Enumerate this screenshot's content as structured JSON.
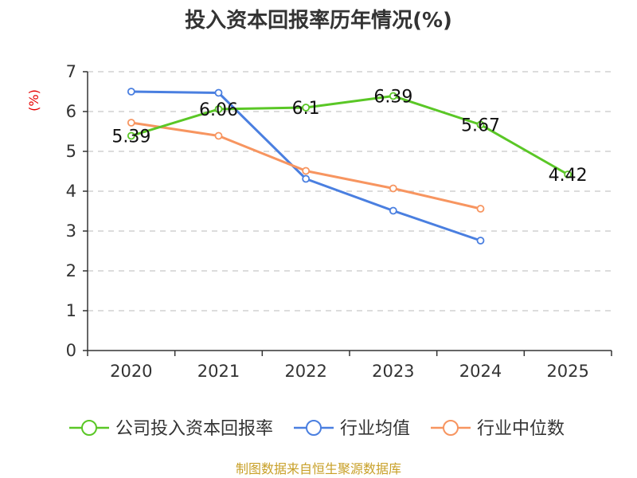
{
  "chart_data": {
    "type": "line",
    "title": "投入资本回报率历年情况(%)",
    "ylabel": "(%)",
    "xlabel": "",
    "categories": [
      "2020",
      "2021",
      "2022",
      "2023",
      "2024",
      "2025"
    ],
    "ylim": [
      0,
      7
    ],
    "yticks": [
      "0",
      "1",
      "2",
      "3",
      "4",
      "5",
      "6",
      "7"
    ],
    "grid": true,
    "legend_position": "bottom",
    "series": [
      {
        "name": "公司投入资本回报率",
        "color": "#5ac726",
        "values": [
          5.39,
          6.06,
          6.1,
          6.39,
          5.67,
          4.42
        ],
        "labels": [
          "5.39",
          "6.06",
          "6.1",
          "6.39",
          "5.67",
          "4.42"
        ]
      },
      {
        "name": "行业均值",
        "color": "#4a7fe0",
        "values": [
          6.5,
          6.47,
          4.31,
          3.51,
          2.76,
          null
        ]
      },
      {
        "name": "行业中位数",
        "color": "#f79560",
        "values": [
          5.72,
          5.39,
          4.51,
          4.07,
          3.56,
          null
        ]
      }
    ],
    "source": "制图数据来自恒生聚源数据库"
  }
}
